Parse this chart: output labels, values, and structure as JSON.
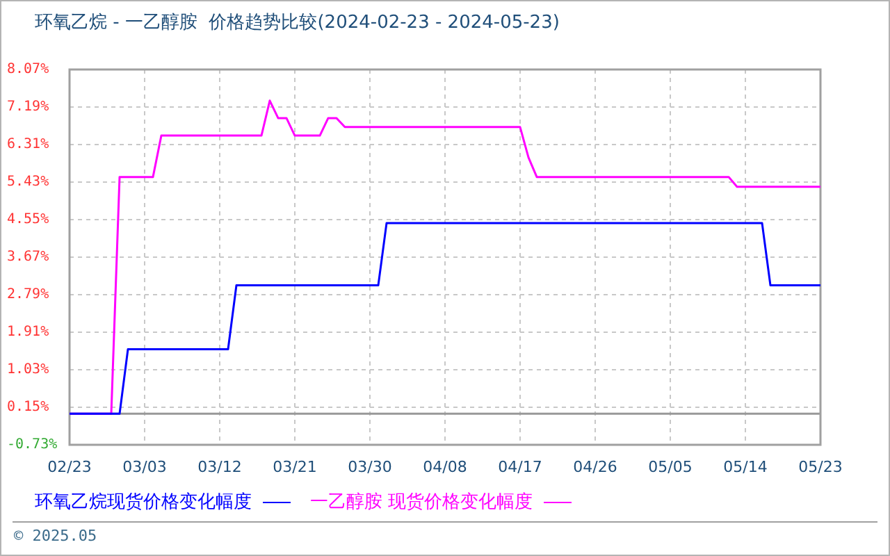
{
  "chart_data": {
    "type": "line",
    "title": "环氧乙烷 - 一乙醇胺  价格趋势比较(2024-02-23 - 2024-05-23)",
    "annotations": [
      "© 2025.05"
    ],
    "xlim": [
      "2024-02-23",
      "2024-05-23"
    ],
    "xticks": [
      {
        "value": "2024-02-23",
        "label": "02/23"
      },
      {
        "value": "2024-03-03",
        "label": "03/03"
      },
      {
        "value": "2024-03-12",
        "label": "03/12"
      },
      {
        "value": "2024-03-21",
        "label": "03/21"
      },
      {
        "value": "2024-03-30",
        "label": "03/30"
      },
      {
        "value": "2024-04-08",
        "label": "04/08"
      },
      {
        "value": "2024-04-17",
        "label": "04/17"
      },
      {
        "value": "2024-04-26",
        "label": "04/26"
      },
      {
        "value": "2024-05-05",
        "label": "05/05"
      },
      {
        "value": "2024-05-14",
        "label": "05/14"
      },
      {
        "value": "2024-05-23",
        "label": "05/23"
      }
    ],
    "ylim": [
      -0.73,
      8.07
    ],
    "yticks": [
      {
        "value": -0.73,
        "label": "-0.73%"
      },
      {
        "value": 0.15,
        "label": "0.15%"
      },
      {
        "value": 1.03,
        "label": "1.03%"
      },
      {
        "value": 1.91,
        "label": "1.91%"
      },
      {
        "value": 2.79,
        "label": "2.79%"
      },
      {
        "value": 3.67,
        "label": "3.67%"
      },
      {
        "value": 4.55,
        "label": "4.55%"
      },
      {
        "value": 5.43,
        "label": "5.43%"
      },
      {
        "value": 6.31,
        "label": "6.31%"
      },
      {
        "value": 7.19,
        "label": "7.19%"
      },
      {
        "value": 8.07,
        "label": "8.07%"
      }
    ],
    "ref_lines": [
      {
        "axis": "y",
        "value": 0,
        "color": "#999999"
      }
    ],
    "grid": true,
    "legend": "bottom",
    "marker": "none",
    "series": [
      {
        "name": "环氧乙烷现货价格变化幅度",
        "color": "#0000ff",
        "x": [
          "2024-02-23",
          "2024-02-29",
          "2024-03-01",
          "2024-03-13",
          "2024-03-14",
          "2024-03-31",
          "2024-04-01",
          "2024-05-16",
          "2024-05-17",
          "2024-05-23"
        ],
        "values": [
          0,
          0,
          1.51,
          1.51,
          3.01,
          3.01,
          4.47,
          4.47,
          3.01,
          3.01
        ]
      },
      {
        "name": "一乙醇胺 现货价格变化幅度",
        "color": "#ff00ff",
        "x": [
          "2024-02-23",
          "2024-02-28",
          "2024-02-29",
          "2024-03-04",
          "2024-03-05",
          "2024-03-17",
          "2024-03-18",
          "2024-03-19",
          "2024-03-20",
          "2024-03-21",
          "2024-03-24",
          "2024-03-25",
          "2024-03-26",
          "2024-03-27",
          "2024-04-17",
          "2024-04-18",
          "2024-04-19",
          "2024-05-12",
          "2024-05-13",
          "2024-05-23"
        ],
        "values": [
          0,
          0,
          5.55,
          5.55,
          6.52,
          6.52,
          7.34,
          6.93,
          6.93,
          6.52,
          6.52,
          6.93,
          6.93,
          6.72,
          6.72,
          6.01,
          5.55,
          5.55,
          5.32,
          5.32
        ]
      }
    ]
  }
}
